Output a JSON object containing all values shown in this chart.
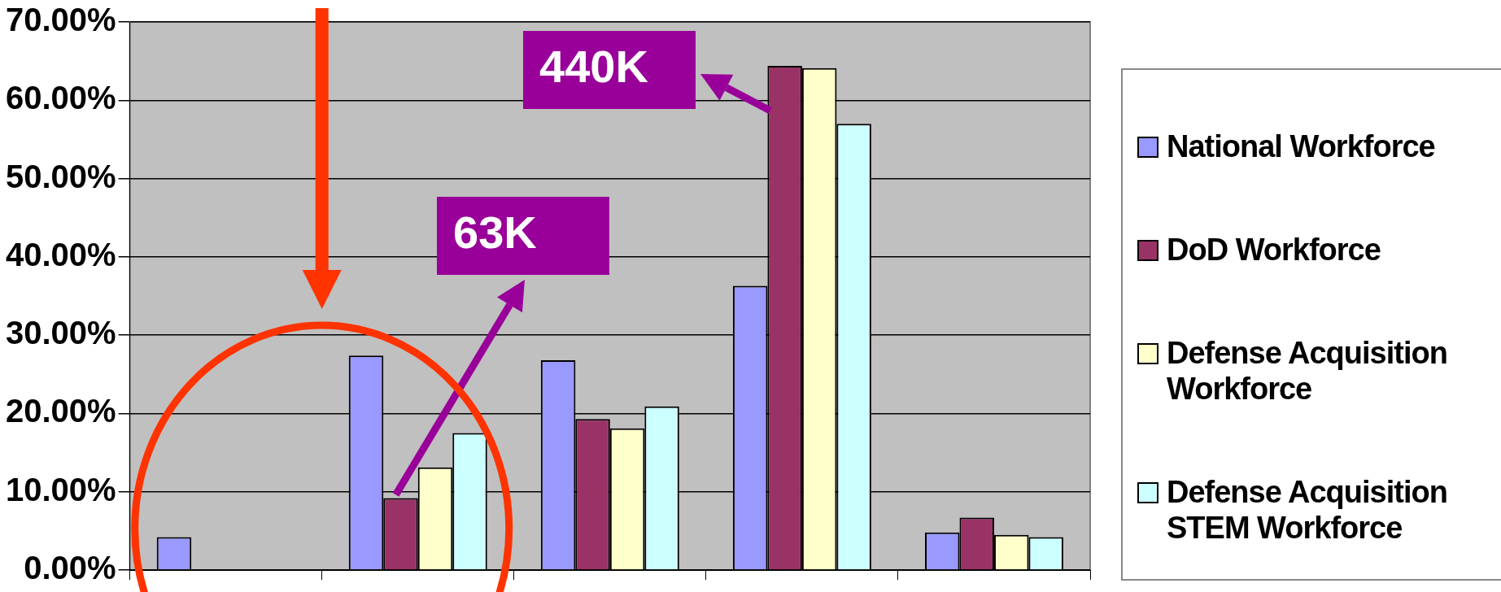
{
  "chart_data": {
    "type": "bar",
    "categories": [
      null,
      null,
      null,
      null,
      null
    ],
    "series": [
      {
        "name": "National Workforce",
        "color": "#9999ff",
        "values": [
          4.2,
          27.4,
          26.8,
          36.3,
          4.8
        ]
      },
      {
        "name": "DoD Workforce",
        "color": "#993366",
        "values": [
          null,
          9.2,
          19.3,
          64.4,
          6.7
        ]
      },
      {
        "name": "Defense Acquisition Workforce",
        "color": "#ffffcc",
        "values": [
          null,
          13.1,
          18.1,
          64.1,
          4.5
        ]
      },
      {
        "name": "Defense Acquisition STEM Workforce",
        "color": "#ccffff",
        "values": [
          null,
          17.5,
          20.9,
          57.0,
          4.2
        ]
      }
    ],
    "ylim": [
      0,
      70
    ],
    "yticks": [
      {
        "value": 0,
        "label": "0.00%"
      },
      {
        "value": 10,
        "label": "10.00%"
      },
      {
        "value": 20,
        "label": "20.00%"
      },
      {
        "value": 30,
        "label": "30.00%"
      },
      {
        "value": 40,
        "label": "40.00%"
      },
      {
        "value": 50,
        "label": "50.00%"
      },
      {
        "value": 60,
        "label": "60.00%"
      },
      {
        "value": 70,
        "label": "70.00%"
      }
    ],
    "grid": "y",
    "legend": "right",
    "tick_labels": "y",
    "annotations": [
      "63K",
      "440K"
    ]
  }
}
